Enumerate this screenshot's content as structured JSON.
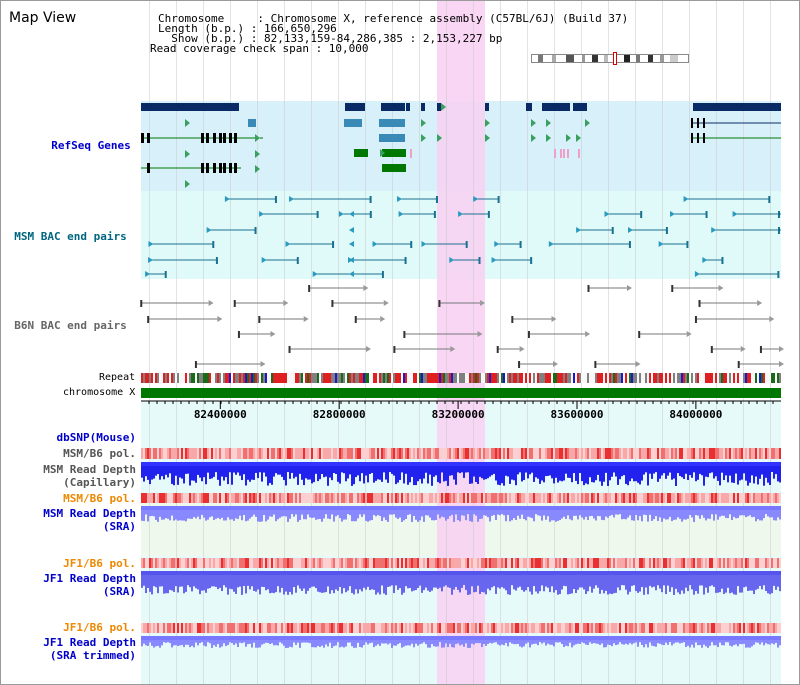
{
  "page": {
    "title": "Map View"
  },
  "info": {
    "line1": "Chromosome     : Chromosome X, reference assembly (C57BL/6J) (Build 37)",
    "line2": "Length (b.p.) : 166,650,296",
    "line3": "  Show (b.p.) : 82,133,159-84,286,385 : 2,153,227 bp",
    "line4": "Read coverage check span : 10,000"
  },
  "tracks": {
    "refseq": {
      "label": "RefSeq Genes",
      "color": "#0000cc"
    },
    "msm_bac": {
      "label": "MSM BAC end pairs",
      "color": "#006680"
    },
    "b6n_bac": {
      "label": "B6N BAC end pairs",
      "color": "#666666"
    },
    "repeat": {
      "label": "Repeat"
    },
    "chromosome": {
      "label": "chromosome X"
    },
    "dbsnp": {
      "label": "dbSNP(Mouse)",
      "color": "#0000cc"
    },
    "msm_b6_pol_cap": {
      "label": "MSM/B6 pol.",
      "color": "#555555"
    },
    "msm_depth_cap": {
      "label1": "MSM Read Depth",
      "label2": "(Capillary)",
      "color": "#555555"
    },
    "msm_b6_pol_sra": {
      "label": "MSM/B6 pol.",
      "color": "#ee8800"
    },
    "msm_depth_sra": {
      "label1": "MSM Read Depth",
      "label2": "(SRA)",
      "color": "#0000cc"
    },
    "jf1_b6_pol": {
      "label": "JF1/B6 pol.",
      "color": "#ee8800"
    },
    "jf1_depth_sra": {
      "label1": "JF1 Read Depth",
      "label2": "(SRA)",
      "color": "#0000cc"
    },
    "jf1_b6_pol_2": {
      "label": "JF1/B6 pol.",
      "color": "#ee8800"
    },
    "jf1_depth_trim": {
      "label1": "JF1 Read Depth",
      "label2": "(SRA trimmed)",
      "color": "#0000cc"
    }
  },
  "axis": {
    "range_bp": [
      82133159,
      84286385
    ],
    "ticks": [
      "82400000",
      "82800000",
      "83200000",
      "83600000",
      "84000000"
    ],
    "tick_values": [
      82400000,
      82800000,
      83200000,
      83600000,
      84000000
    ]
  },
  "highlight": {
    "range_bp": [
      83130000,
      83290000
    ],
    "color": "#f5c8f0"
  },
  "colors": {
    "refseq_bg": "#d8f0fa",
    "msm_bac_bg": "#e0fafa",
    "b6n_bac_bg": "#ffffff",
    "snp_bg": "#e8faf5",
    "jf1_bg": "#e6f8fb",
    "gene_dark": "#0a2a66",
    "gene_mid": "#3a8ab8",
    "gene_green": "#007700",
    "depth_blue": "#2222ee",
    "depth_light": "#8888ff"
  }
}
